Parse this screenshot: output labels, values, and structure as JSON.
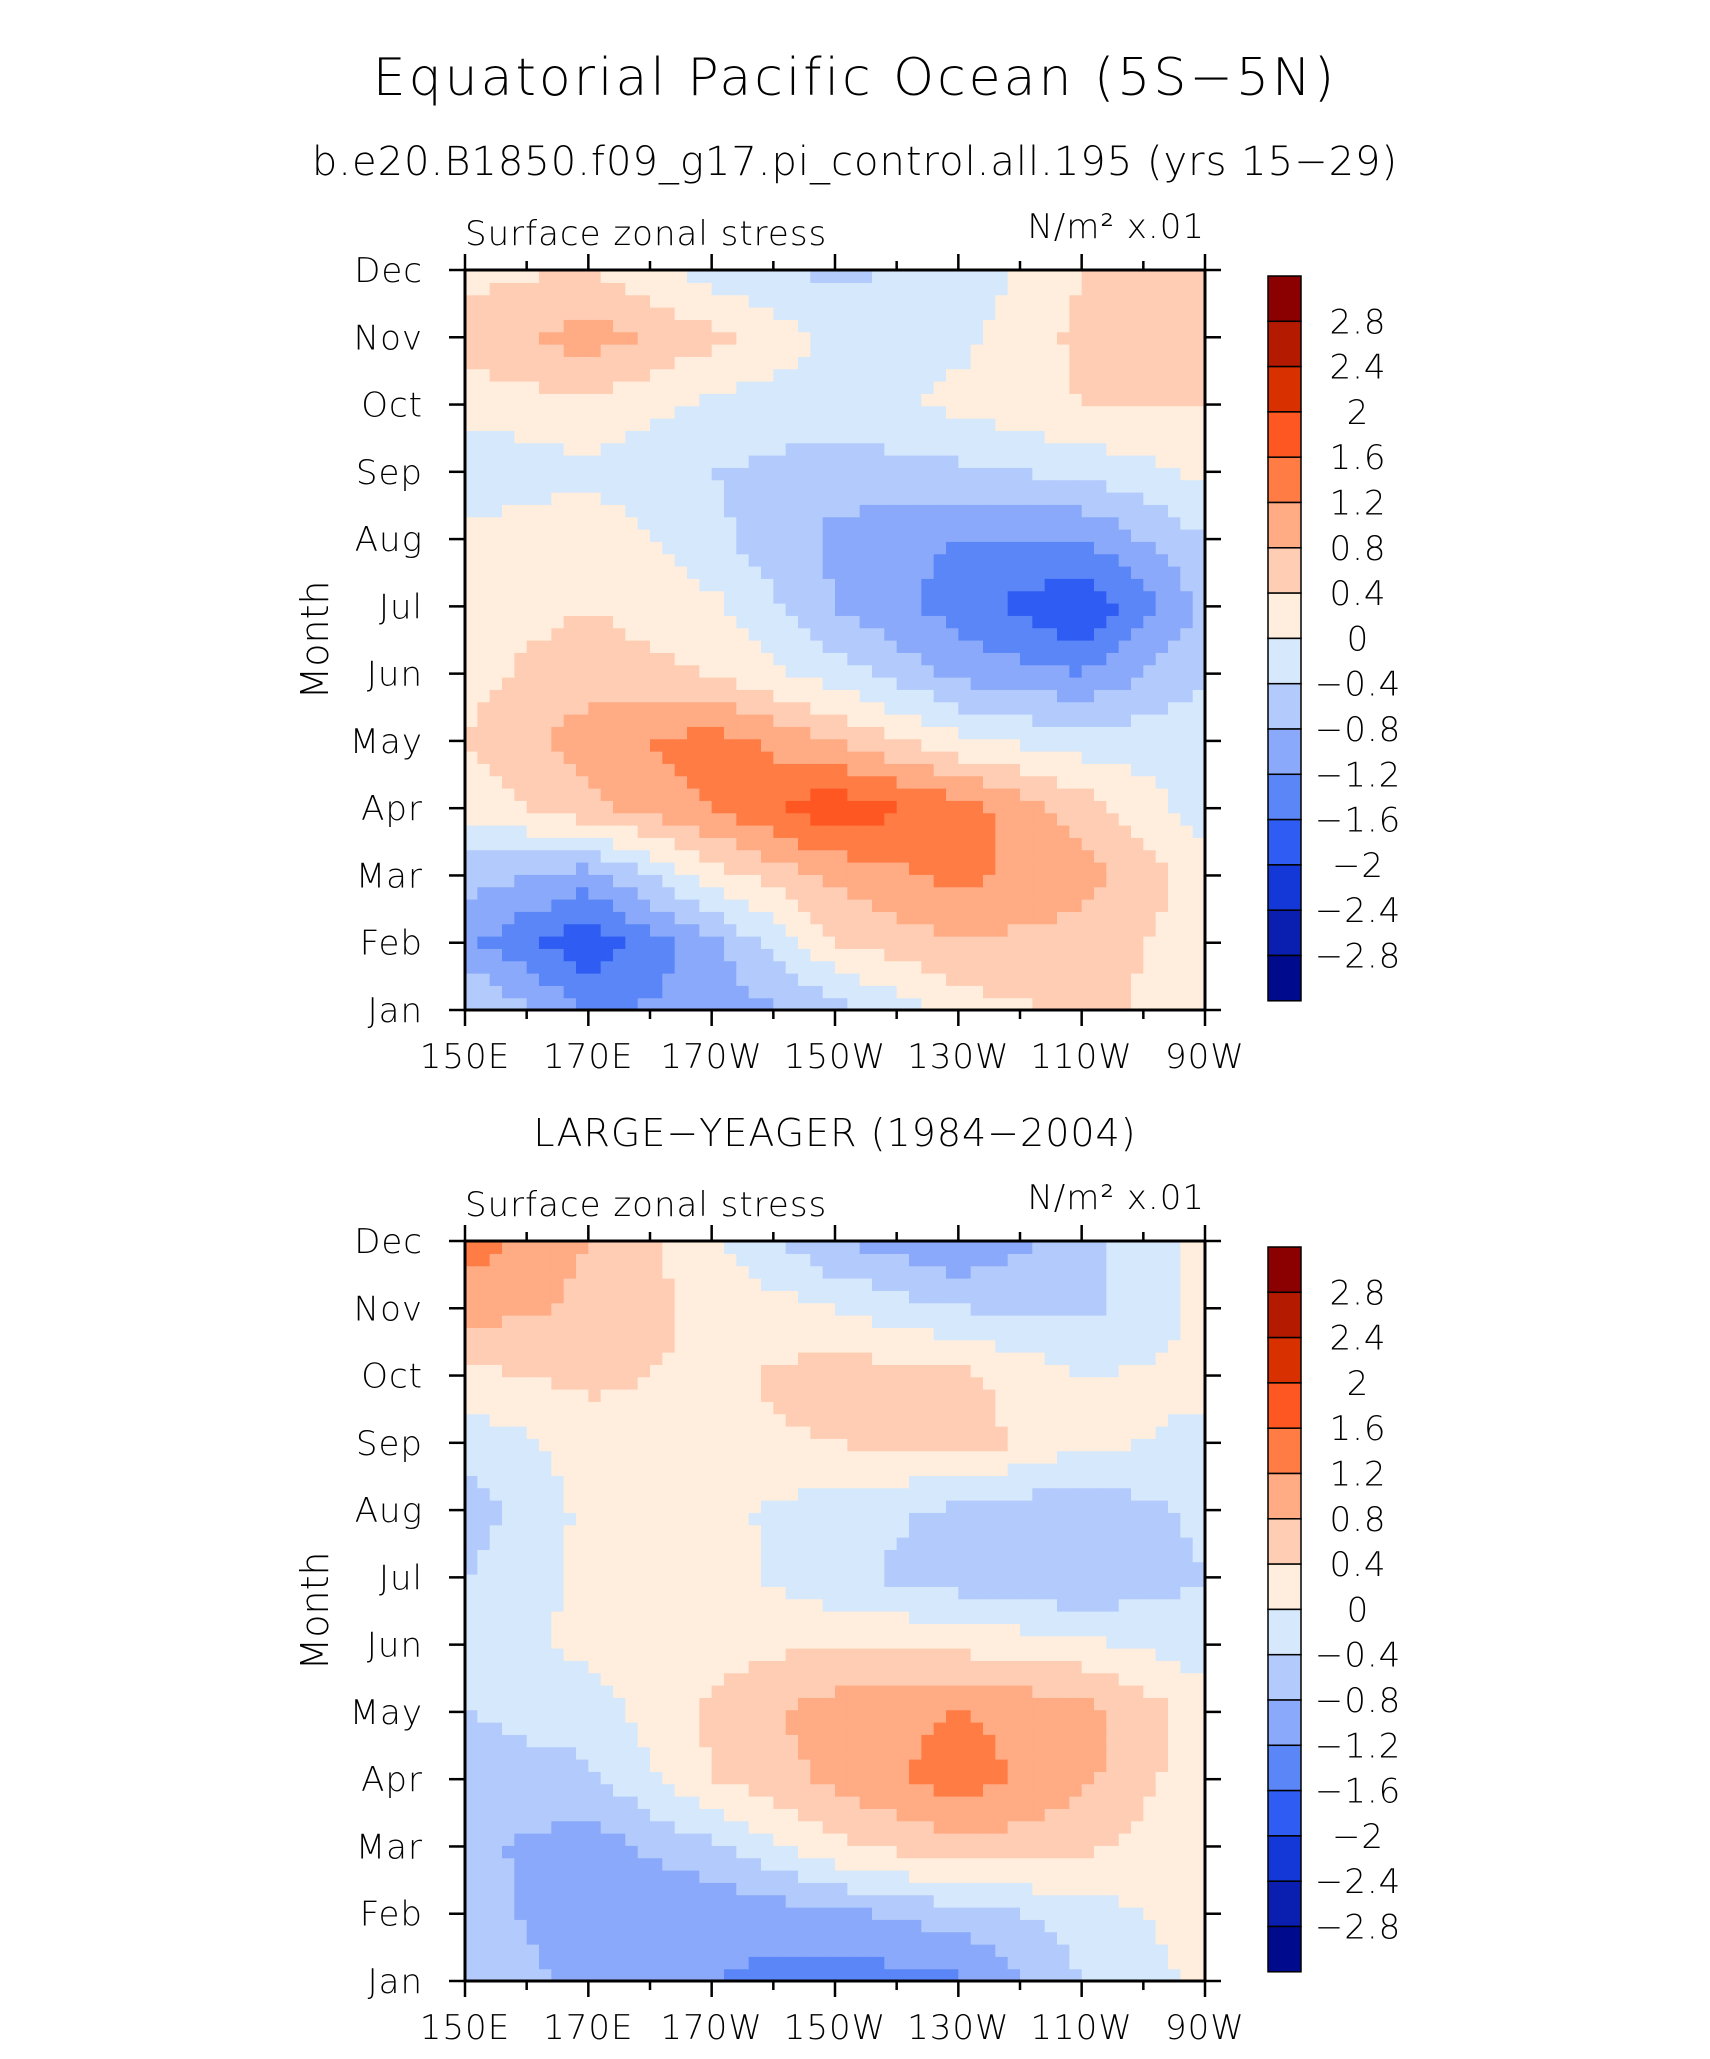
{
  "title": "Equatorial Pacific Ocean (5S−5N)",
  "subtitle": "b.e20.B1850.f09_g17.pi_control.all.195 (yrs 15−29)",
  "colorbar": {
    "labels": [
      "2.8",
      "2.4",
      "2",
      "1.6",
      "1.2",
      "0.8",
      "0.4",
      "0",
      "−0.4",
      "−0.8",
      "−1.2",
      "−1.6",
      "−2",
      "−2.4",
      "−2.8"
    ],
    "colors": [
      "#8b0000",
      "#b41a00",
      "#d93000",
      "#ff5722",
      "#ff7c45",
      "#ffab84",
      "#ffcdb4",
      "#ffeedd",
      "#d6e8fc",
      "#b2cbfc",
      "#8aa9fa",
      "#5a86f8",
      "#2f5cf2",
      "#1438d8",
      "#0a1fb0",
      "#000a8c"
    ]
  },
  "chart_data": [
    {
      "type": "heatmap",
      "title": "Surface zonal stress",
      "panel_title": "",
      "units": "N/m² x.01",
      "xlabel": "",
      "ylabel": "Month",
      "x_ticks": [
        "150E",
        "170E",
        "170W",
        "150W",
        "130W",
        "110W",
        "90W"
      ],
      "y_ticks": [
        "Jan",
        "Feb",
        "Mar",
        "Apr",
        "May",
        "Jun",
        "Jul",
        "Aug",
        "Sep",
        "Oct",
        "Nov",
        "Dec"
      ],
      "x_values_deg_east": [
        150,
        170,
        190,
        210,
        230,
        250,
        270
      ],
      "y_values": [
        1,
        2,
        3,
        4,
        5,
        6,
        7,
        8,
        9,
        10,
        11,
        12
      ],
      "z": [
        [
          -0.3,
          -1.2,
          -1.1,
          -0.6,
          0.2,
          0.5,
          0.2
        ],
        [
          -1.1,
          -1.9,
          -0.9,
          0.4,
          0.8,
          0.6,
          0.2
        ],
        [
          -0.6,
          -1.0,
          0.2,
          0.9,
          1.3,
          1.0,
          0.2
        ],
        [
          0.1,
          0.7,
          1.2,
          1.9,
          1.4,
          0.6,
          -0.2
        ],
        [
          0.4,
          1.0,
          1.4,
          0.8,
          0.1,
          -0.2,
          -0.2
        ],
        [
          0.3,
          0.6,
          0.4,
          -0.2,
          -0.9,
          -1.2,
          -0.4
        ],
        [
          0.2,
          0.4,
          0.1,
          -0.8,
          -1.4,
          -2.0,
          -0.7
        ],
        [
          0.2,
          0.3,
          -0.3,
          -0.9,
          -1.2,
          -1.2,
          -0.4
        ],
        [
          -0.4,
          -0.1,
          -0.4,
          -0.6,
          -0.5,
          -0.3,
          0.1
        ],
        [
          0.2,
          0.3,
          -0.1,
          -0.2,
          0.1,
          0.4,
          0.4
        ],
        [
          0.5,
          1.0,
          0.5,
          -0.1,
          -0.1,
          0.5,
          0.5
        ],
        [
          0.3,
          0.4,
          -0.2,
          -0.5,
          -0.3,
          0.4,
          0.4
        ]
      ]
    },
    {
      "type": "heatmap",
      "title": "Surface zonal stress",
      "panel_title": "LARGE−YEAGER (1984−2004)",
      "units": "N/m² x.01",
      "xlabel": "",
      "ylabel": "Month",
      "x_ticks": [
        "150E",
        "170E",
        "170W",
        "150W",
        "130W",
        "110W",
        "90W"
      ],
      "y_ticks": [
        "Jan",
        "Feb",
        "Mar",
        "Apr",
        "May",
        "Jun",
        "Jul",
        "Aug",
        "Sep",
        "Oct",
        "Nov",
        "Dec"
      ],
      "x_values_deg_east": [
        150,
        170,
        190,
        210,
        230,
        250,
        270
      ],
      "y_values": [
        1,
        2,
        3,
        4,
        5,
        6,
        7,
        8,
        9,
        10,
        11,
        12
      ],
      "z": [
        [
          -0.5,
          -0.9,
          -1.2,
          -1.4,
          -1.3,
          -0.4,
          0.1
        ],
        [
          -0.6,
          -1.1,
          -1.1,
          -0.9,
          -0.6,
          -0.2,
          0.2
        ],
        [
          -0.7,
          -1.0,
          -0.5,
          0.3,
          0.7,
          0.5,
          0.1
        ],
        [
          -0.6,
          -0.5,
          0.4,
          0.9,
          1.4,
          0.9,
          0.1
        ],
        [
          -0.4,
          -0.2,
          0.5,
          1.0,
          1.2,
          1.0,
          0.2
        ],
        [
          -0.2,
          0.1,
          0.2,
          0.4,
          0.3,
          0.1,
          -0.2
        ],
        [
          -0.4,
          0.1,
          0.2,
          -0.3,
          -0.6,
          -0.8,
          -0.4
        ],
        [
          -0.6,
          0.1,
          0.1,
          -0.2,
          -0.5,
          -0.7,
          -0.3
        ],
        [
          -0.3,
          0.2,
          0.3,
          0.4,
          0.6,
          0.1,
          -0.1
        ],
        [
          0.3,
          0.5,
          0.3,
          0.6,
          0.5,
          0.0,
          0.1
        ],
        [
          1.0,
          0.7,
          0.3,
          0.0,
          -0.4,
          -0.5,
          0.1
        ],
        [
          1.4,
          0.8,
          0.1,
          -0.8,
          -1.2,
          -0.6,
          0.2
        ]
      ]
    }
  ]
}
